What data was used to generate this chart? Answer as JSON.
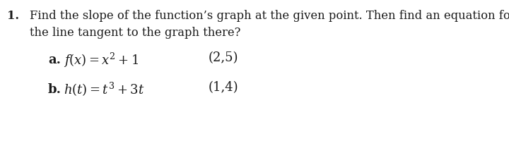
{
  "background_color": "#ffffff",
  "text_color": "#1a1a1a",
  "number": "1.",
  "line1": "Find the slope of the function’s graph at the given point. Then find an equation for",
  "line2": "the line tangent to the graph there?",
  "part_a_label": "a.",
  "part_a_point": "(2,5)",
  "part_b_label": "b.",
  "part_b_point": "(1,4)",
  "fontsize_main": 11.8,
  "fontsize_parts": 13.0,
  "font_family": "DejaVu Serif"
}
